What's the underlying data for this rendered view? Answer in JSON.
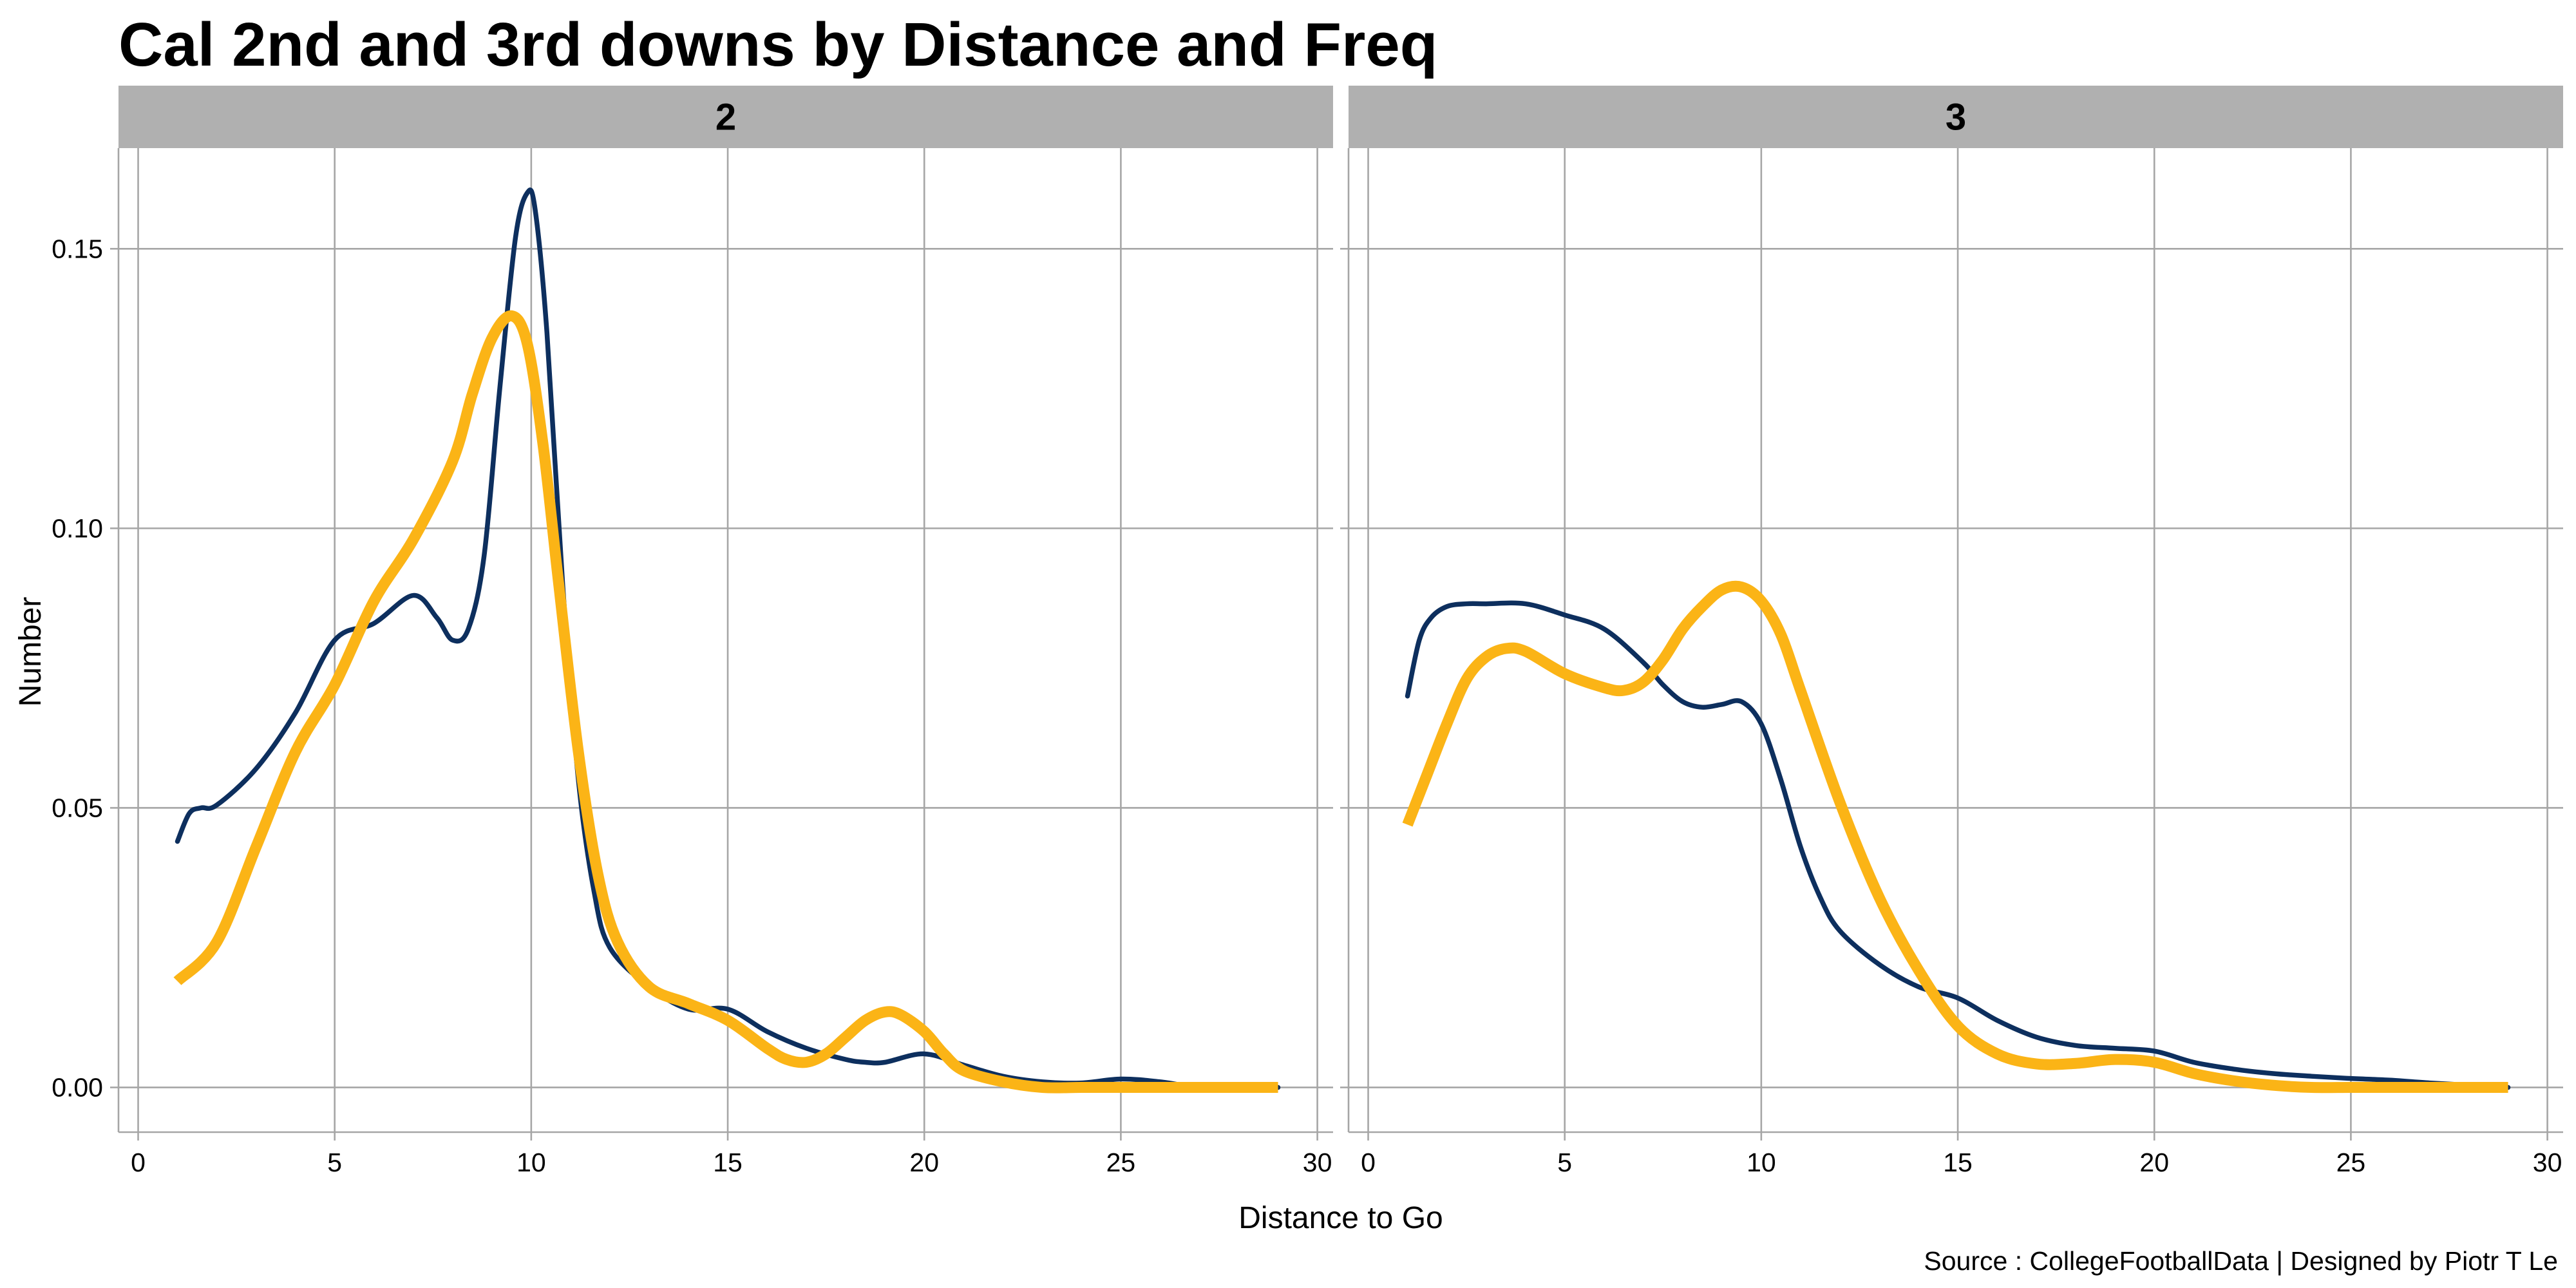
{
  "chart_data": {
    "type": "line",
    "title": "Cal 2nd and 3rd downs by Distance and Freq",
    "xlabel": "Distance to Go",
    "ylabel": "Number",
    "caption": "Source : CollegeFootballData | Designed by Piotr T Le",
    "xlim": [
      -0.5,
      30.4
    ],
    "ylim": [
      -0.008,
      0.168
    ],
    "x_ticks": [
      0,
      5,
      10,
      15,
      20,
      25,
      30
    ],
    "y_ticks": [
      0.0,
      0.05,
      0.1,
      0.15
    ],
    "y_tick_labels": [
      "0.00",
      "0.05",
      "0.10",
      "0.15"
    ],
    "grid": true,
    "legend": "none",
    "colors": {
      "navy": "#0d2f5e",
      "gold": "#fbb416",
      "strip": "#b0b0b0",
      "grid": "#a6a6a6"
    },
    "panels": [
      {
        "label": "2",
        "series": [
          {
            "color": "#0d2f5e",
            "x": [
              1,
              1.3,
              1.6,
              2,
              3,
              4,
              5,
              6,
              7,
              7.6,
              8,
              8.4,
              8.8,
              9.2,
              9.6,
              9.9,
              10.1,
              10.4,
              10.8,
              11.2,
              11.6,
              12,
              13,
              14,
              15,
              16,
              17,
              18,
              18.5,
              19,
              20,
              21,
              22,
              23,
              24,
              25,
              26,
              27,
              28,
              29
            ],
            "y": [
              0.044,
              0.049,
              0.05,
              0.0505,
              0.057,
              0.067,
              0.08,
              0.083,
              0.088,
              0.084,
              0.08,
              0.082,
              0.095,
              0.125,
              0.152,
              0.16,
              0.157,
              0.135,
              0.09,
              0.055,
              0.035,
              0.025,
              0.018,
              0.014,
              0.014,
              0.01,
              0.007,
              0.005,
              0.0045,
              0.0045,
              0.006,
              0.004,
              0.002,
              0.001,
              0.0008,
              0.0015,
              0.001,
              0.0,
              0.0,
              0.0
            ]
          },
          {
            "color": "#fbb416",
            "x": [
              1,
              2,
              3,
              4,
              5,
              6,
              7,
              8,
              8.5,
              9,
              9.5,
              9.9,
              10.3,
              10.7,
              11.2,
              11.7,
              12.2,
              13,
              14,
              15,
              16,
              16.5,
              17,
              17.5,
              18,
              18.5,
              19,
              19.4,
              20,
              20.5,
              21,
              22,
              23,
              24,
              25,
              26,
              27,
              28,
              29
            ],
            "y": [
              0.019,
              0.026,
              0.043,
              0.06,
              0.072,
              0.087,
              0.098,
              0.112,
              0.124,
              0.134,
              0.138,
              0.133,
              0.115,
              0.09,
              0.06,
              0.038,
              0.026,
              0.018,
              0.015,
              0.012,
              0.007,
              0.005,
              0.0045,
              0.006,
              0.009,
              0.012,
              0.0135,
              0.013,
              0.01,
              0.006,
              0.003,
              0.001,
              0.0,
              0.0,
              0.0,
              0.0,
              0.0,
              0.0,
              0.0
            ]
          }
        ]
      },
      {
        "label": "3",
        "series": [
          {
            "color": "#0d2f5e",
            "x": [
              1,
              1.3,
              1.6,
              2,
              2.5,
              3,
              4,
              5,
              6,
              7,
              7.5,
              8,
              8.5,
              9,
              9.5,
              10,
              10.5,
              11,
              11.5,
              12,
              13,
              14,
              15,
              16,
              17,
              18,
              19,
              20,
              21,
              22,
              23,
              24,
              25,
              26,
              27,
              28,
              29
            ],
            "y": [
              0.07,
              0.08,
              0.084,
              0.086,
              0.0865,
              0.0865,
              0.0865,
              0.0845,
              0.082,
              0.076,
              0.072,
              0.069,
              0.068,
              0.0685,
              0.069,
              0.065,
              0.055,
              0.043,
              0.034,
              0.028,
              0.022,
              0.018,
              0.016,
              0.012,
              0.009,
              0.0075,
              0.007,
              0.0065,
              0.0045,
              0.0033,
              0.0025,
              0.002,
              0.0016,
              0.0013,
              0.0008,
              0.0004,
              0.0
            ]
          },
          {
            "color": "#fbb416",
            "x": [
              1,
              1.5,
              2,
              2.5,
              3,
              3.5,
              4,
              5,
              6,
              6.5,
              7,
              7.5,
              8,
              8.5,
              9,
              9.5,
              10,
              10.5,
              11,
              12,
              13,
              14,
              15,
              16,
              17,
              18,
              19,
              20,
              21,
              22,
              23,
              24,
              25,
              26,
              27,
              28,
              29
            ],
            "y": [
              0.047,
              0.056,
              0.065,
              0.073,
              0.077,
              0.0785,
              0.078,
              0.074,
              0.0715,
              0.071,
              0.0725,
              0.0765,
              0.082,
              0.086,
              0.089,
              0.0895,
              0.087,
              0.081,
              0.071,
              0.051,
              0.034,
              0.021,
              0.011,
              0.006,
              0.0042,
              0.0043,
              0.005,
              0.0045,
              0.0025,
              0.0012,
              0.0004,
              0.0,
              0.0,
              0.0,
              0.0,
              0.0,
              0.0
            ]
          }
        ]
      }
    ]
  }
}
